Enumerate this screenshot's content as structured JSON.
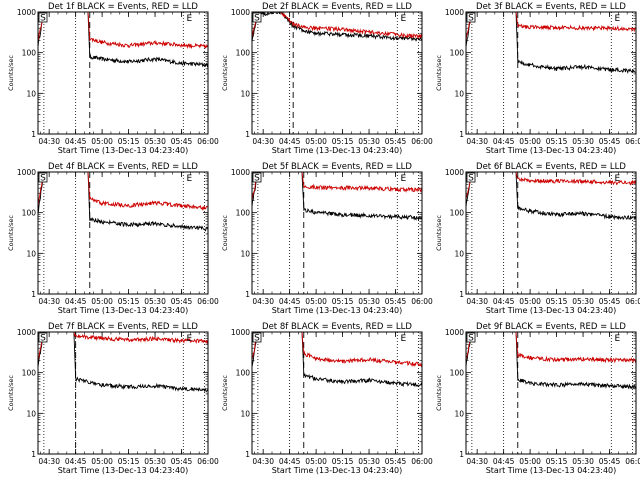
{
  "chart_data": [
    {
      "type": "line",
      "title": "Det 1f BLACK = Events, RED = LLD",
      "xlabel": "Start Time (13-Dec-13 04:23:40)",
      "ylabel": "Counts/sec",
      "yscale": "log",
      "ylim": [
        1,
        1000
      ],
      "xlim": [
        "04:23:40",
        "06:00"
      ],
      "x_ticks": [
        "04:30",
        "04:45",
        "05:00",
        "05:15",
        "05:30",
        "05:45",
        "06:00"
      ],
      "y_ticks": [
        "1",
        "10",
        "100",
        "1000"
      ],
      "markers": {
        "start": "S",
        "end": "E"
      },
      "series": [
        {
          "name": "Events",
          "color": "#000000",
          "values": [
            [
              "04:23:40",
              150
            ],
            [
              "04:27",
              1000
            ],
            [
              "04:52",
              1000
            ],
            [
              "04:53",
              80
            ],
            [
              "05:00",
              70
            ],
            [
              "05:15",
              60
            ],
            [
              "05:30",
              70
            ],
            [
              "05:45",
              55
            ],
            [
              "06:00",
              50
            ]
          ]
        },
        {
          "name": "LLD",
          "color": "#cc0000",
          "values": [
            [
              "04:23:40",
              200
            ],
            [
              "04:27",
              1000
            ],
            [
              "04:52",
              1000
            ],
            [
              "04:53",
              220
            ],
            [
              "05:00",
              180
            ],
            [
              "05:15",
              150
            ],
            [
              "05:30",
              175
            ],
            [
              "05:45",
              155
            ],
            [
              "06:00",
              140
            ]
          ]
        }
      ]
    },
    {
      "type": "line",
      "title": "Det 2f BLACK = Events, RED = LLD",
      "xlabel": "Start Time (13-Dec-13 04:23:40)",
      "ylabel": "Counts/sec",
      "yscale": "log",
      "ylim": [
        1,
        1000
      ],
      "xlim": [
        "04:23:40",
        "06:00"
      ],
      "x_ticks": [
        "04:30",
        "04:45",
        "05:00",
        "05:15",
        "05:30",
        "05:45",
        "06:00"
      ],
      "y_ticks": [
        "1",
        "10",
        "100",
        "1000"
      ],
      "markers": {
        "start": "S",
        "end": "E"
      },
      "series": [
        {
          "name": "Events",
          "color": "#000000",
          "values": [
            [
              "04:23:40",
              200
            ],
            [
              "04:27",
              900
            ],
            [
              "04:40",
              1000
            ],
            [
              "04:47",
              450
            ],
            [
              "04:53",
              350
            ],
            [
              "05:00",
              300
            ],
            [
              "05:15",
              280
            ],
            [
              "05:30",
              260
            ],
            [
              "05:45",
              230
            ],
            [
              "06:00",
              210
            ]
          ]
        },
        {
          "name": "LLD",
          "color": "#cc0000",
          "values": [
            [
              "04:23:40",
              250
            ],
            [
              "04:27",
              1000
            ],
            [
              "04:40",
              1000
            ],
            [
              "04:47",
              500
            ],
            [
              "04:53",
              420
            ],
            [
              "05:00",
              400
            ],
            [
              "05:15",
              380
            ],
            [
              "05:30",
              320
            ],
            [
              "05:45",
              280
            ],
            [
              "06:00",
              250
            ]
          ]
        }
      ]
    },
    {
      "type": "line",
      "title": "Det 3f BLACK = Events, RED = LLD",
      "xlabel": "Start Time (13-Dec-13 04:23:40)",
      "ylabel": "Counts/sec",
      "yscale": "log",
      "ylim": [
        1,
        1000
      ],
      "xlim": [
        "04:23:40",
        "06:00"
      ],
      "x_ticks": [
        "04:30",
        "04:45",
        "05:00",
        "05:15",
        "05:30",
        "05:45",
        "06:00"
      ],
      "y_ticks": [
        "1",
        "10",
        "100",
        "1000"
      ],
      "markers": {
        "start": "S",
        "end": "E"
      },
      "series": [
        {
          "name": "Events",
          "color": "#000000",
          "values": [
            [
              "04:23:40",
              150
            ],
            [
              "04:27",
              1000
            ],
            [
              "04:52",
              1000
            ],
            [
              "04:53",
              60
            ],
            [
              "05:00",
              50
            ],
            [
              "05:15",
              40
            ],
            [
              "05:30",
              45
            ],
            [
              "05:45",
              38
            ],
            [
              "06:00",
              35
            ]
          ]
        },
        {
          "name": "LLD",
          "color": "#cc0000",
          "values": [
            [
              "04:23:40",
              200
            ],
            [
              "04:27",
              1000
            ],
            [
              "04:52",
              1000
            ],
            [
              "04:53",
              450
            ],
            [
              "05:00",
              430
            ],
            [
              "05:15",
              420
            ],
            [
              "05:30",
              410
            ],
            [
              "05:45",
              400
            ],
            [
              "06:00",
              380
            ]
          ]
        }
      ]
    },
    {
      "type": "line",
      "title": "Det 4f BLACK = Events, RED = LLD",
      "xlabel": "Start Time (13-Dec-13 04:23:40)",
      "ylabel": "Counts/sec",
      "yscale": "log",
      "ylim": [
        1,
        1000
      ],
      "xlim": [
        "04:23:40",
        "06:00"
      ],
      "x_ticks": [
        "04:30",
        "04:45",
        "05:00",
        "05:15",
        "05:30",
        "05:45",
        "06:00"
      ],
      "y_ticks": [
        "1",
        "10",
        "100",
        "1000"
      ],
      "markers": {
        "start": "S",
        "end": "E"
      },
      "series": [
        {
          "name": "Events",
          "color": "#000000",
          "values": [
            [
              "04:23:40",
              100
            ],
            [
              "04:27",
              1000
            ],
            [
              "04:52",
              1000
            ],
            [
              "04:53",
              70
            ],
            [
              "05:00",
              60
            ],
            [
              "05:15",
              50
            ],
            [
              "05:30",
              55
            ],
            [
              "05:45",
              45
            ],
            [
              "06:00",
              40
            ]
          ]
        },
        {
          "name": "LLD",
          "color": "#cc0000",
          "values": [
            [
              "04:23:40",
              150
            ],
            [
              "04:27",
              1000
            ],
            [
              "04:52",
              1000
            ],
            [
              "04:53",
              220
            ],
            [
              "05:00",
              170
            ],
            [
              "05:15",
              150
            ],
            [
              "05:30",
              175
            ],
            [
              "05:45",
              150
            ],
            [
              "06:00",
              130
            ]
          ]
        }
      ]
    },
    {
      "type": "line",
      "title": "Det 5f BLACK = Events, RED = LLD",
      "xlabel": "Start Time (13-Dec-13 04:23:40)",
      "ylabel": "Counts/sec",
      "yscale": "log",
      "ylim": [
        1,
        1000
      ],
      "xlim": [
        "04:23:40",
        "06:00"
      ],
      "x_ticks": [
        "04:30",
        "04:45",
        "05:00",
        "05:15",
        "05:30",
        "05:45",
        "06:00"
      ],
      "y_ticks": [
        "1",
        "10",
        "100",
        "1000"
      ],
      "markers": {
        "start": "S",
        "end": "E"
      },
      "series": [
        {
          "name": "Events",
          "color": "#000000",
          "values": [
            [
              "04:23:40",
              150
            ],
            [
              "04:27",
              1000
            ],
            [
              "04:52",
              1000
            ],
            [
              "04:53",
              120
            ],
            [
              "05:00",
              100
            ],
            [
              "05:15",
              90
            ],
            [
              "05:30",
              85
            ],
            [
              "05:45",
              80
            ],
            [
              "06:00",
              75
            ]
          ]
        },
        {
          "name": "LLD",
          "color": "#cc0000",
          "values": [
            [
              "04:23:40",
              200
            ],
            [
              "04:27",
              1000
            ],
            [
              "04:52",
              1000
            ],
            [
              "04:53",
              450
            ],
            [
              "05:00",
              420
            ],
            [
              "05:15",
              410
            ],
            [
              "05:30",
              400
            ],
            [
              "05:45",
              380
            ],
            [
              "06:00",
              360
            ]
          ]
        }
      ]
    },
    {
      "type": "line",
      "title": "Det 6f BLACK = Events, RED = LLD",
      "xlabel": "Start Time (13-Dec-13 04:23:40)",
      "ylabel": "Counts/sec",
      "yscale": "log",
      "ylim": [
        1,
        1000
      ],
      "xlim": [
        "04:23:40",
        "06:00"
      ],
      "x_ticks": [
        "04:30",
        "04:45",
        "05:00",
        "05:15",
        "05:30",
        "05:45",
        "06:00"
      ],
      "y_ticks": [
        "1",
        "10",
        "100",
        "1000"
      ],
      "markers": {
        "start": "S",
        "end": "E"
      },
      "series": [
        {
          "name": "Events",
          "color": "#000000",
          "values": [
            [
              "04:23:40",
              150
            ],
            [
              "04:27",
              1000
            ],
            [
              "04:52",
              1000
            ],
            [
              "04:53",
              130
            ],
            [
              "05:00",
              110
            ],
            [
              "05:15",
              90
            ],
            [
              "05:30",
              95
            ],
            [
              "05:45",
              80
            ],
            [
              "06:00",
              75
            ]
          ]
        },
        {
          "name": "LLD",
          "color": "#cc0000",
          "values": [
            [
              "04:23:40",
              200
            ],
            [
              "04:27",
              1000
            ],
            [
              "04:52",
              1000
            ],
            [
              "04:53",
              650
            ],
            [
              "05:00",
              620
            ],
            [
              "05:15",
              600
            ],
            [
              "05:30",
              590
            ],
            [
              "05:45",
              560
            ],
            [
              "06:00",
              540
            ]
          ]
        }
      ]
    },
    {
      "type": "line",
      "title": "Det 7f BLACK = Events, RED = LLD",
      "xlabel": "Start Time (13-Dec-13 04:23:40)",
      "ylabel": "Counts/sec",
      "yscale": "log",
      "ylim": [
        1,
        1000
      ],
      "xlim": [
        "04:23:40",
        "06:00"
      ],
      "x_ticks": [
        "04:30",
        "04:45",
        "05:00",
        "05:15",
        "05:30",
        "05:45",
        "06:00"
      ],
      "y_ticks": [
        "1",
        "10",
        "100",
        "1000"
      ],
      "markers": {
        "start": "S",
        "end": "E"
      },
      "series": [
        {
          "name": "Events",
          "color": "#000000",
          "values": [
            [
              "04:23:40",
              150
            ],
            [
              "04:27",
              1000
            ],
            [
              "04:44",
              1000
            ],
            [
              "04:45",
              70
            ],
            [
              "05:00",
              50
            ],
            [
              "05:15",
              45
            ],
            [
              "05:30",
              48
            ],
            [
              "05:45",
              40
            ],
            [
              "06:00",
              38
            ]
          ]
        },
        {
          "name": "LLD",
          "color": "#cc0000",
          "values": [
            [
              "04:23:40",
              200
            ],
            [
              "04:27",
              1000
            ],
            [
              "04:44",
              1000
            ],
            [
              "04:45",
              800
            ],
            [
              "05:00",
              700
            ],
            [
              "05:15",
              650
            ],
            [
              "05:30",
              680
            ],
            [
              "05:45",
              620
            ],
            [
              "06:00",
              600
            ]
          ]
        }
      ]
    },
    {
      "type": "line",
      "title": "Det 8f BLACK = Events, RED = LLD",
      "xlabel": "Start Time (13-Dec-13 04:23:40)",
      "ylabel": "Counts/sec",
      "yscale": "log",
      "ylim": [
        1,
        1000
      ],
      "xlim": [
        "04:23:40",
        "06:00"
      ],
      "x_ticks": [
        "04:30",
        "04:45",
        "05:00",
        "05:15",
        "05:30",
        "05:45",
        "06:00"
      ],
      "y_ticks": [
        "1",
        "10",
        "100",
        "1000"
      ],
      "markers": {
        "start": "S",
        "end": "E"
      },
      "series": [
        {
          "name": "Events",
          "color": "#000000",
          "values": [
            [
              "04:23:40",
              150
            ],
            [
              "04:27",
              1000
            ],
            [
              "04:52",
              1000
            ],
            [
              "04:53",
              90
            ],
            [
              "05:00",
              70
            ],
            [
              "05:15",
              60
            ],
            [
              "05:30",
              65
            ],
            [
              "05:45",
              55
            ],
            [
              "06:00",
              50
            ]
          ]
        },
        {
          "name": "LLD",
          "color": "#cc0000",
          "values": [
            [
              "04:23:40",
              200
            ],
            [
              "04:27",
              1000
            ],
            [
              "04:52",
              1000
            ],
            [
              "04:53",
              300
            ],
            [
              "05:00",
              220
            ],
            [
              "05:15",
              190
            ],
            [
              "05:30",
              210
            ],
            [
              "05:45",
              180
            ],
            [
              "06:00",
              160
            ]
          ]
        }
      ]
    },
    {
      "type": "line",
      "title": "Det 9f BLACK = Events, RED = LLD",
      "xlabel": "Start Time (13-Dec-13 04:23:40)",
      "ylabel": "Counts/sec",
      "yscale": "log",
      "ylim": [
        1,
        1000
      ],
      "xlim": [
        "04:23:40",
        "06:00"
      ],
      "x_ticks": [
        "04:30",
        "04:45",
        "05:00",
        "05:15",
        "05:30",
        "05:45",
        "06:00"
      ],
      "y_ticks": [
        "1",
        "10",
        "100",
        "1000"
      ],
      "markers": {
        "start": "S",
        "end": "E"
      },
      "series": [
        {
          "name": "Events",
          "color": "#000000",
          "values": [
            [
              "04:23:40",
              150
            ],
            [
              "04:27",
              1000
            ],
            [
              "04:52",
              1000
            ],
            [
              "04:53",
              70
            ],
            [
              "05:00",
              55
            ],
            [
              "05:15",
              50
            ],
            [
              "05:30",
              52
            ],
            [
              "05:45",
              48
            ],
            [
              "06:00",
              45
            ]
          ]
        },
        {
          "name": "LLD",
          "color": "#cc0000",
          "values": [
            [
              "04:23:40",
              200
            ],
            [
              "04:27",
              1000
            ],
            [
              "04:52",
              1000
            ],
            [
              "04:53",
              280
            ],
            [
              "05:00",
              230
            ],
            [
              "05:15",
              210
            ],
            [
              "05:30",
              215
            ],
            [
              "05:45",
              205
            ],
            [
              "06:00",
              200
            ]
          ]
        }
      ]
    }
  ]
}
